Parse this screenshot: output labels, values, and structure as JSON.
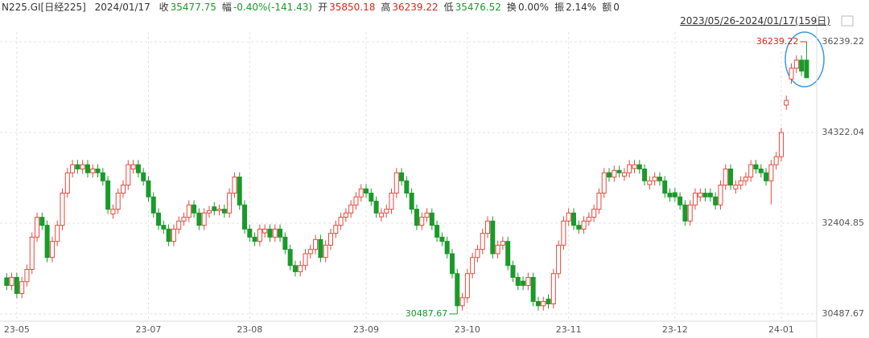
{
  "header": {
    "symbol": "N225.GI[日经225]",
    "date": "2024/01/17",
    "items": [
      {
        "label": "收",
        "value": "35477.75",
        "color": "#1a9a2a"
      },
      {
        "label": "幅",
        "value": "-0.40%(-141.43)",
        "color": "#1a9a2a"
      },
      {
        "label": "开",
        "value": "35850.18",
        "color": "#d9261c"
      },
      {
        "label": "高",
        "value": "36239.22",
        "color": "#d9261c"
      },
      {
        "label": "低",
        "value": "35476.52",
        "color": "#1a9a2a"
      },
      {
        "label": "换",
        "value": "0.00%",
        "color": "#333333"
      },
      {
        "label": "振",
        "value": "2.14%",
        "color": "#333333"
      },
      {
        "label": "额",
        "value": "0",
        "color": "#333333"
      }
    ],
    "range": "2023/05/26-2024/01/17(159日)"
  },
  "chart_data": {
    "type": "candlestick",
    "up_color": "#e8473f",
    "down_color": "#1a9a2a",
    "xlim": [
      -1,
      160
    ],
    "xticks": [
      {
        "value": 2,
        "label": "23-05"
      },
      {
        "value": 28,
        "label": "23-07"
      },
      {
        "value": 48,
        "label": "23-08"
      },
      {
        "value": 71,
        "label": "23-09"
      },
      {
        "value": 91,
        "label": "23-10"
      },
      {
        "value": 111,
        "label": "23-11"
      },
      {
        "value": 132,
        "label": "23-12"
      },
      {
        "value": 153,
        "label": "24-01"
      }
    ],
    "ylim": [
      30335,
      36612
    ],
    "yticks": [
      30487.67,
      32404.85,
      34322.04,
      36239.22
    ],
    "grid": true,
    "open": [
      31250,
      31090,
      31260,
      30920,
      31170,
      31430,
      32110,
      32530,
      32360,
      31680,
      32020,
      32360,
      33040,
      33470,
      33640,
      33550,
      33640,
      33470,
      33550,
      33470,
      33300,
      32600,
      32700,
      33040,
      33210,
      33550,
      33640,
      33470,
      33300,
      32960,
      32620,
      32360,
      32280,
      32020,
      32280,
      32450,
      32530,
      32790,
      32620,
      32360,
      32620,
      32750,
      32670,
      32700,
      32620,
      33040,
      33380,
      32790,
      32280,
      32110,
      32020,
      32200,
      32280,
      32110,
      32280,
      32110,
      31850,
      31510,
      31380,
      31510,
      31760,
      31850,
      32060,
      31680,
      31940,
      32190,
      32360,
      32530,
      32620,
      32790,
      32960,
      33130,
      33040,
      32870,
      32540,
      32620,
      32700,
      33040,
      33470,
      33300,
      33040,
      32700,
      32360,
      32530,
      32620,
      32360,
      32110,
      32020,
      31760,
      31340,
      30660,
      30830,
      31340,
      31680,
      31850,
      32190,
      32450,
      31760,
      31940,
      32020,
      31510,
      31260,
      31180,
      31090,
      31260,
      30750,
      30660,
      30800,
      30700,
      31340,
      31940,
      32450,
      32620,
      32360,
      32280,
      32450,
      32530,
      32700,
      33040,
      33470,
      33380,
      33520,
      33400,
      33470,
      33560,
      33640,
      33550,
      33220,
      33300,
      33380,
      33300,
      33040,
      33050,
      32960,
      32790,
      32450,
      32790,
      32960,
      33040,
      33040,
      32960,
      32790,
      33210,
      33550,
      33130,
      33210,
      33300,
      33380,
      33640,
      33550,
      33470,
      33300,
      33640,
      33810,
      34900,
      35450,
      35680,
      35850,
      35850.18
    ],
    "high": [
      31350,
      31360,
      31360,
      31270,
      31530,
      32210,
      32630,
      32630,
      32460,
      32120,
      32460,
      33140,
      33570,
      33740,
      33740,
      33740,
      33740,
      33650,
      33650,
      33570,
      33400,
      32800,
      33140,
      33310,
      33740,
      33740,
      33740,
      33570,
      33400,
      33060,
      32720,
      32460,
      32380,
      32380,
      32550,
      32630,
      32890,
      32890,
      32720,
      32720,
      32770,
      32850,
      32800,
      32800,
      33140,
      33480,
      33480,
      32890,
      32380,
      32210,
      32380,
      32380,
      32380,
      32380,
      32380,
      32210,
      31950,
      31610,
      31610,
      31860,
      31950,
      32160,
      32160,
      32040,
      32290,
      32460,
      32630,
      32720,
      32890,
      33060,
      33230,
      33230,
      33140,
      32970,
      32720,
      32800,
      33140,
      33570,
      33570,
      33400,
      33140,
      32800,
      32630,
      32720,
      32720,
      32460,
      32210,
      32120,
      31860,
      31440,
      30930,
      31440,
      31780,
      31950,
      32290,
      32550,
      32550,
      32040,
      32120,
      32120,
      31610,
      31360,
      31280,
      31360,
      31360,
      30850,
      30850,
      30900,
      31440,
      32040,
      32550,
      32720,
      32720,
      32460,
      32550,
      32630,
      32800,
      33140,
      33570,
      33570,
      33620,
      33620,
      33570,
      33740,
      33740,
      33740,
      33650,
      33400,
      33480,
      33480,
      33400,
      33140,
      33150,
      33060,
      32890,
      32890,
      33140,
      33140,
      33140,
      33140,
      33060,
      33310,
      33650,
      33650,
      33310,
      33400,
      33480,
      33740,
      33740,
      33650,
      33570,
      33740,
      33910,
      34420,
      35100,
      35780,
      35950,
      35950,
      36239.22
    ],
    "low": [
      30990,
      30990,
      30820,
      30820,
      31070,
      31330,
      32010,
      32260,
      31580,
      31580,
      31920,
      32260,
      32940,
      33370,
      33450,
      33450,
      33370,
      33370,
      33370,
      33200,
      32600,
      32500,
      32600,
      32940,
      33110,
      33450,
      33370,
      33200,
      32860,
      32520,
      32260,
      32180,
      31920,
      31920,
      32180,
      32350,
      32430,
      32520,
      32260,
      32260,
      32520,
      32570,
      32570,
      32520,
      32520,
      32940,
      32690,
      32180,
      32010,
      31920,
      31920,
      32100,
      32010,
      32010,
      32010,
      31750,
      31410,
      31280,
      31280,
      31410,
      31660,
      31750,
      31580,
      31580,
      31840,
      32090,
      32260,
      32430,
      32520,
      32690,
      32860,
      32940,
      32770,
      32520,
      32440,
      32520,
      32600,
      32940,
      33200,
      32940,
      32600,
      32260,
      32260,
      32430,
      32260,
      32010,
      31920,
      31660,
      31240,
      30487.67,
      30560,
      30730,
      31240,
      31580,
      31750,
      32090,
      31660,
      31660,
      31840,
      31410,
      31160,
      30990,
      30990,
      30990,
      30650,
      30560,
      30560,
      30600,
      30600,
      31240,
      31840,
      32350,
      32260,
      32180,
      32180,
      32350,
      32430,
      32600,
      32940,
      33280,
      33280,
      33370,
      33300,
      33370,
      33460,
      33450,
      33200,
      33120,
      33200,
      33200,
      32940,
      32860,
      32860,
      32690,
      32350,
      32350,
      32690,
      32860,
      32860,
      32860,
      32690,
      32690,
      33110,
      33110,
      33030,
      33110,
      33200,
      33280,
      33450,
      33370,
      33200,
      32800,
      33540,
      33710,
      34800,
      35350,
      35580,
      35520,
      35476.52
    ],
    "close": [
      31090,
      31260,
      30920,
      31170,
      31430,
      32110,
      32530,
      32360,
      31680,
      32020,
      32360,
      33040,
      33470,
      33640,
      33550,
      33640,
      33470,
      33550,
      33470,
      33300,
      32700,
      32700,
      33040,
      33210,
      33640,
      33640,
      33470,
      33300,
      32960,
      32620,
      32360,
      32280,
      32020,
      32280,
      32450,
      32530,
      32790,
      32620,
      32360,
      32620,
      32670,
      32670,
      32700,
      32620,
      33040,
      33380,
      32790,
      32280,
      32110,
      32020,
      32280,
      32280,
      32110,
      32280,
      32110,
      31850,
      31510,
      31380,
      31510,
      31760,
      31850,
      32060,
      31680,
      31940,
      32190,
      32360,
      32530,
      32620,
      32790,
      32960,
      33130,
      33040,
      32870,
      32620,
      32620,
      32700,
      33040,
      33470,
      33300,
      33040,
      32700,
      32360,
      32530,
      32620,
      32360,
      32110,
      32020,
      31760,
      31340,
      30660,
      30830,
      31340,
      31680,
      31850,
      32190,
      32450,
      31760,
      31940,
      32020,
      31510,
      31260,
      31090,
      31090,
      31260,
      30750,
      30660,
      30750,
      30700,
      31340,
      31940,
      32450,
      32620,
      32360,
      32280,
      32450,
      32530,
      32700,
      33040,
      33470,
      33380,
      33520,
      33470,
      33470,
      33640,
      33640,
      33550,
      33300,
      33300,
      33380,
      33300,
      33040,
      32960,
      32960,
      32790,
      32450,
      32790,
      33040,
      33040,
      32960,
      32960,
      32790,
      33210,
      33550,
      33210,
      33210,
      33300,
      33380,
      33640,
      33550,
      33470,
      33300,
      33640,
      33810,
      34320,
      35000,
      35680,
      35850,
      35619.18,
      35477.75
    ],
    "max_label_index": 158,
    "min_label_index": 89
  }
}
